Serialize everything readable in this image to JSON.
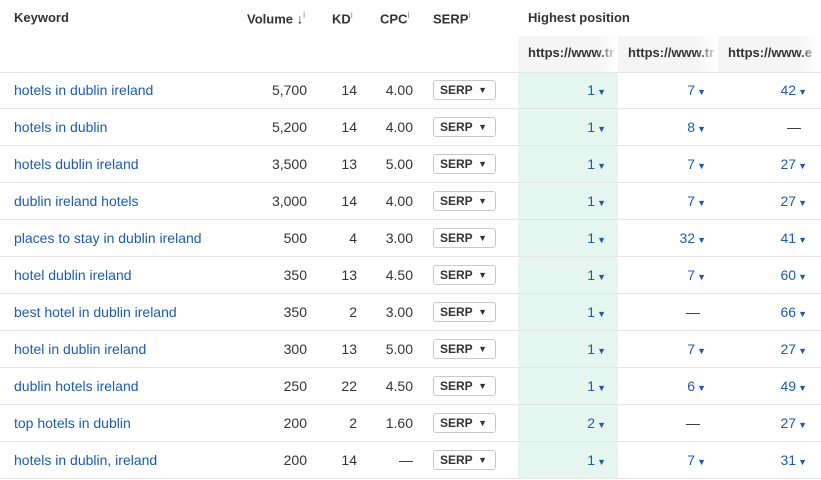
{
  "headers": {
    "keyword": "Keyword",
    "volume": "Volume",
    "volume_sort": "↓",
    "kd": "KD",
    "cpc": "CPC",
    "serp": "SERP",
    "info": "i",
    "highest_position": "Highest position",
    "urls": [
      "https://www.tr",
      "https://www.tr",
      "https://www.e"
    ]
  },
  "rows": [
    {
      "keyword": "hotels in dublin ireland",
      "volume": "5,700",
      "kd": "14",
      "cpc": "4.00",
      "serp": "SERP",
      "pos": [
        "1",
        "7",
        "42"
      ]
    },
    {
      "keyword": "hotels in dublin",
      "volume": "5,200",
      "kd": "14",
      "cpc": "4.00",
      "serp": "SERP",
      "pos": [
        "1",
        "8",
        "—"
      ]
    },
    {
      "keyword": "hotels dublin ireland",
      "volume": "3,500",
      "kd": "13",
      "cpc": "5.00",
      "serp": "SERP",
      "pos": [
        "1",
        "7",
        "27"
      ]
    },
    {
      "keyword": "dublin ireland hotels",
      "volume": "3,000",
      "kd": "14",
      "cpc": "4.00",
      "serp": "SERP",
      "pos": [
        "1",
        "7",
        "27"
      ]
    },
    {
      "keyword": "places to stay in dublin ireland",
      "volume": "500",
      "kd": "4",
      "cpc": "3.00",
      "serp": "SERP",
      "pos": [
        "1",
        "32",
        "41"
      ]
    },
    {
      "keyword": "hotel dublin ireland",
      "volume": "350",
      "kd": "13",
      "cpc": "4.50",
      "serp": "SERP",
      "pos": [
        "1",
        "7",
        "60"
      ]
    },
    {
      "keyword": "best hotel in dublin ireland",
      "volume": "350",
      "kd": "2",
      "cpc": "3.00",
      "serp": "SERP",
      "pos": [
        "1",
        "—",
        "66"
      ]
    },
    {
      "keyword": "hotel in dublin ireland",
      "volume": "300",
      "kd": "13",
      "cpc": "5.00",
      "serp": "SERP",
      "pos": [
        "1",
        "7",
        "27"
      ]
    },
    {
      "keyword": "dublin hotels ireland",
      "volume": "250",
      "kd": "22",
      "cpc": "4.50",
      "serp": "SERP",
      "pos": [
        "1",
        "6",
        "49"
      ]
    },
    {
      "keyword": "top hotels in dublin",
      "volume": "200",
      "kd": "2",
      "cpc": "1.60",
      "serp": "SERP",
      "pos": [
        "2",
        "—",
        "27"
      ]
    },
    {
      "keyword": "hotels in dublin, ireland",
      "volume": "200",
      "kd": "14",
      "cpc": "—",
      "serp": "SERP",
      "pos": [
        "1",
        "7",
        "31"
      ]
    }
  ],
  "icons": {
    "dropdown": "caret-down-icon",
    "position_change": "triangle-down-icon"
  },
  "colors": {
    "link": "#1d5ca8",
    "highlight": "#e5f5ef"
  }
}
